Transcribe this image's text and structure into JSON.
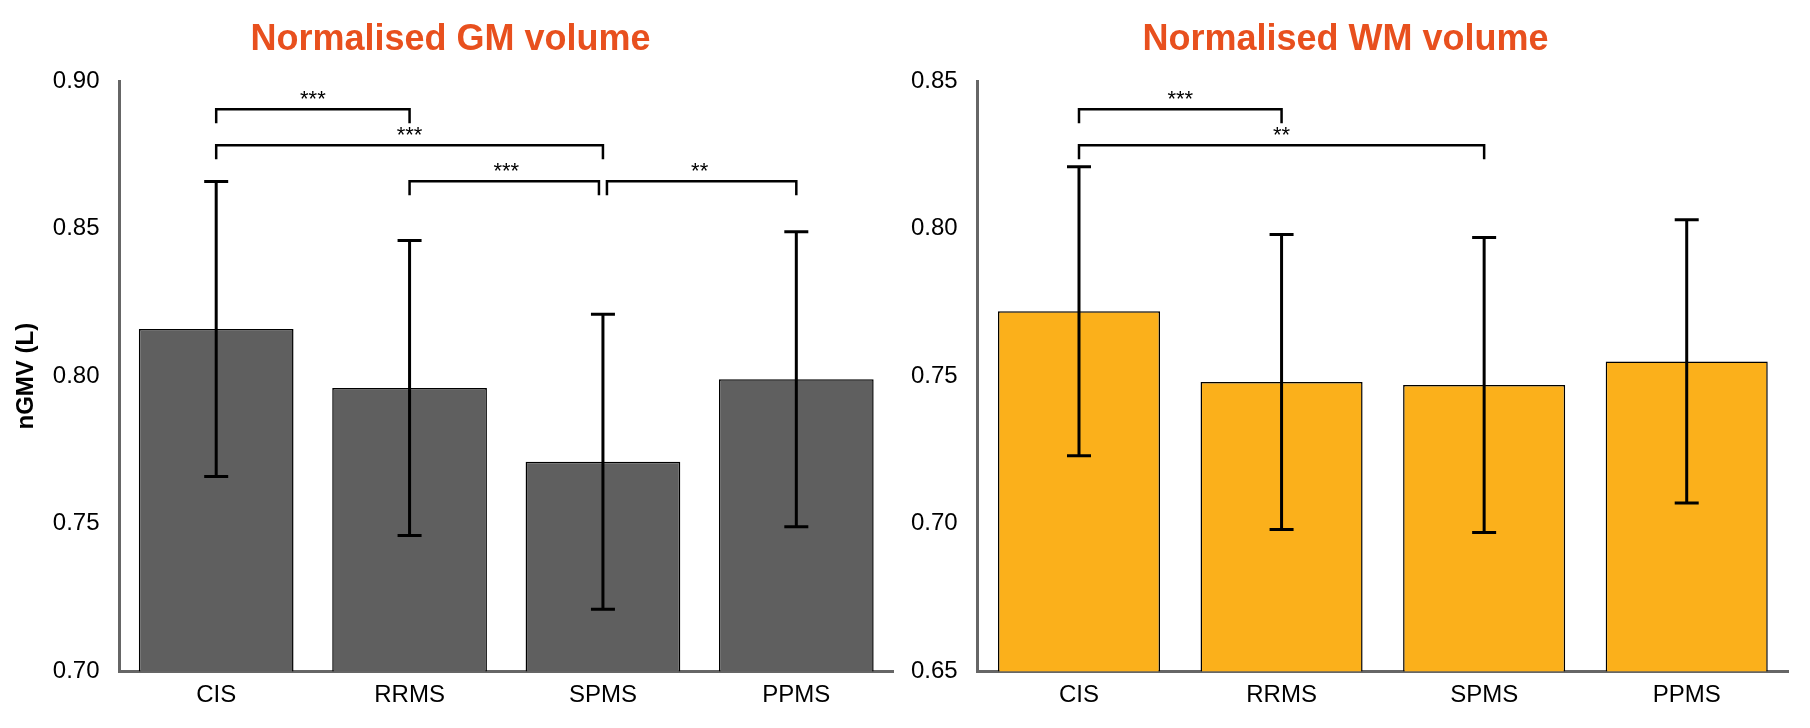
{
  "chart_data": [
    {
      "type": "bar",
      "title": "Normalised GM volume",
      "ylabel": "nGMV (L)",
      "categories": [
        "CIS",
        "RRMS",
        "SPMS",
        "PPMS"
      ],
      "values": [
        0.816,
        0.796,
        0.771,
        0.799
      ],
      "errors": [
        0.05,
        0.05,
        0.05,
        0.05
      ],
      "color": "#5f5f5f",
      "ylim": [
        0.7,
        0.9
      ],
      "yticks": [
        {
          "value": 0.7,
          "label": "0.70"
        },
        {
          "value": 0.75,
          "label": "0.75"
        },
        {
          "value": 0.8,
          "label": "0.80"
        },
        {
          "value": 0.85,
          "label": "0.85"
        },
        {
          "value": 0.9,
          "label": "0.90"
        }
      ],
      "grid": false,
      "legend": false,
      "annotations": [
        "***",
        "***",
        "***",
        "**"
      ]
    },
    {
      "type": "bar",
      "title": "Normalised WM volume",
      "categories": [
        "CIS",
        "RRMS",
        "SPMS",
        "PPMS"
      ],
      "values": [
        0.772,
        0.748,
        0.747,
        0.755
      ],
      "errors": [
        0.049,
        0.05,
        0.05,
        0.048
      ],
      "color": "#fbb01b",
      "ylim": [
        0.65,
        0.85
      ],
      "yticks": [
        {
          "value": 0.65,
          "label": "0.65"
        },
        {
          "value": 0.7,
          "label": "0.70"
        },
        {
          "value": 0.75,
          "label": "0.75"
        },
        {
          "value": 0.8,
          "label": "0.80"
        },
        {
          "value": 0.85,
          "label": "0.85"
        }
      ],
      "grid": false,
      "legend": false,
      "annotations": [
        "***",
        "**"
      ]
    }
  ]
}
